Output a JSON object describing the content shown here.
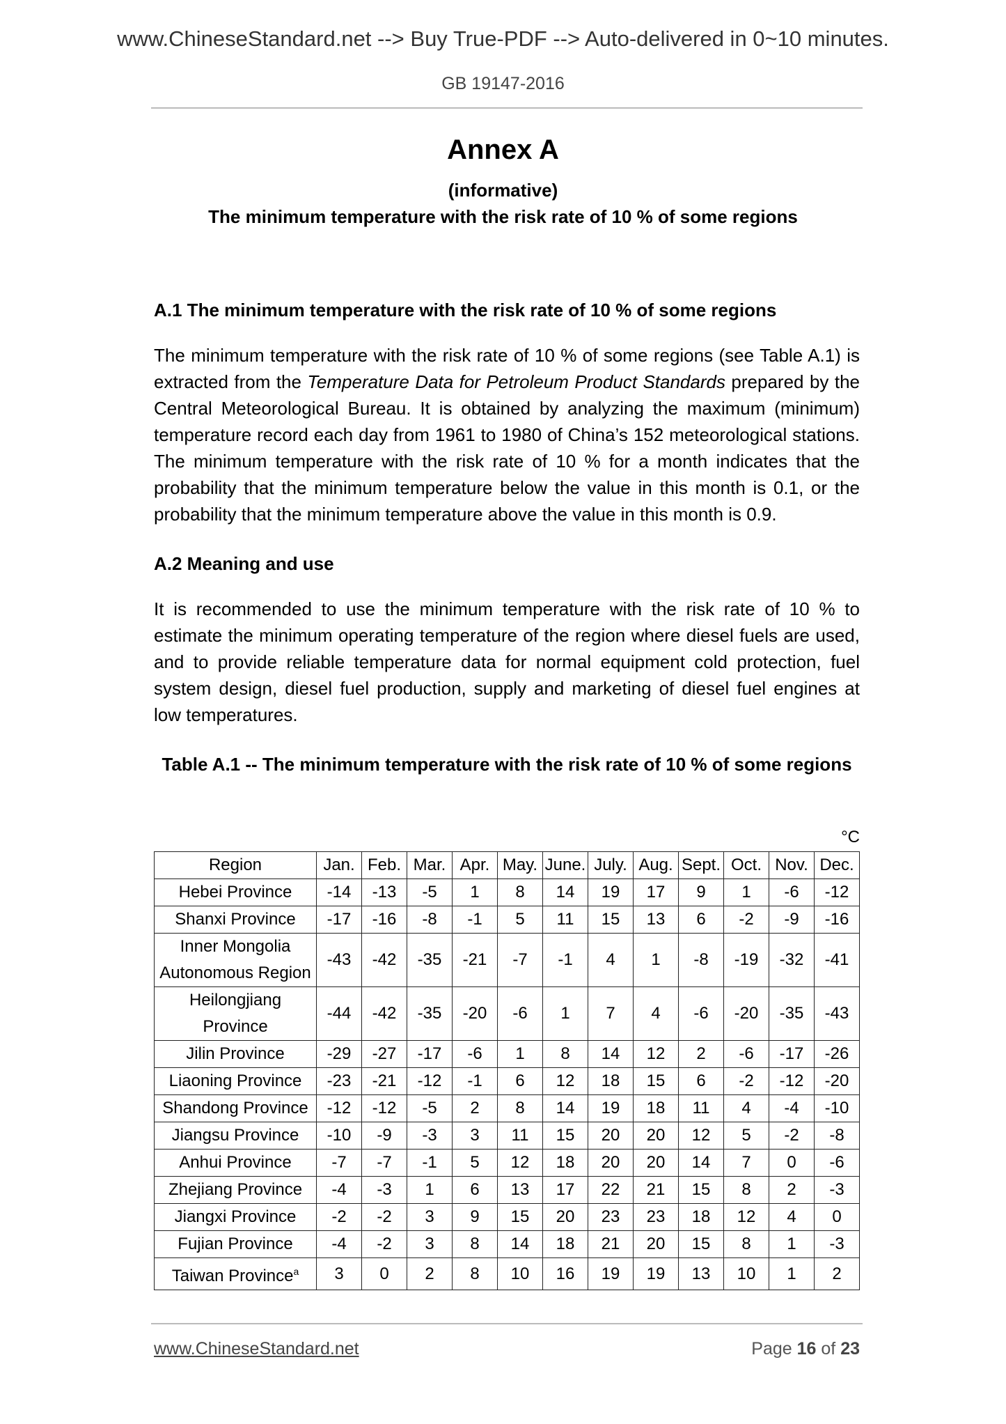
{
  "banner": "www.ChineseStandard.net --> Buy True-PDF --> Auto-delivered in 0~10 minutes.",
  "doc_code": "GB 19147-2016",
  "annex": {
    "title": "Annex A",
    "type": "(informative)",
    "subtitle": "The minimum temperature with the risk rate of 10 % of some regions"
  },
  "sections": [
    {
      "heading": "A.1 The minimum temperature with the risk rate of 10 % of some regions",
      "para_pre": "The minimum temperature with the risk rate of 10 % of some regions (see Table A.1) is extracted from the ",
      "para_italic": "Temperature Data for Petroleum Product Standards",
      "para_post": " prepared by the Central Meteorological Bureau. It is obtained by analyzing the maximum (minimum) temperature record each day from 1961 to 1980 of China’s 152 meteorological stations. The minimum temperature with the risk rate of 10 % for a month indicates that the probability that the minimum temperature below the value in this month is 0.1, or the probability that the minimum temperature above the value in this month is 0.9."
    },
    {
      "heading": "A.2 Meaning and use",
      "para": "It is recommended to use the minimum temperature with the risk rate of 10 % to estimate the minimum operating temperature of the region where diesel fuels are used, and to provide reliable temperature data for normal equipment cold protection, fuel system design, diesel fuel production, supply and marketing of diesel fuel engines at low temperatures."
    }
  ],
  "table": {
    "caption": "Table A.1 -- The minimum temperature with the risk rate of 10 % of some regions",
    "unit": "°C",
    "headers": [
      "Region",
      "Jan.",
      "Feb.",
      "Mar.",
      "Apr.",
      "May.",
      "June.",
      "July.",
      "Aug.",
      "Sept.",
      "Oct.",
      "Nov.",
      "Dec."
    ],
    "rows": [
      {
        "region": "Hebei Province",
        "values": [
          -14,
          -13,
          -5,
          1,
          8,
          14,
          19,
          17,
          9,
          1,
          -6,
          -12
        ]
      },
      {
        "region": "Shanxi Province",
        "values": [
          -17,
          -16,
          -8,
          -1,
          5,
          11,
          15,
          13,
          6,
          -2,
          -9,
          -16
        ]
      },
      {
        "region": "Inner Mongolia Autonomous Region",
        "values": [
          -43,
          -42,
          -35,
          -21,
          -7,
          -1,
          4,
          1,
          -8,
          -19,
          -32,
          -41
        ]
      },
      {
        "region": "Heilongjiang Province",
        "values": [
          -44,
          -42,
          -35,
          -20,
          -6,
          1,
          7,
          4,
          -6,
          -20,
          -35,
          -43
        ]
      },
      {
        "region": "Jilin Province",
        "values": [
          -29,
          -27,
          -17,
          -6,
          1,
          8,
          14,
          12,
          2,
          -6,
          -17,
          -26
        ]
      },
      {
        "region": "Liaoning Province",
        "values": [
          -23,
          -21,
          -12,
          -1,
          6,
          12,
          18,
          15,
          6,
          -2,
          -12,
          -20
        ]
      },
      {
        "region": "Shandong Province",
        "values": [
          -12,
          -12,
          -5,
          2,
          8,
          14,
          19,
          18,
          11,
          4,
          -4,
          -10
        ]
      },
      {
        "region": "Jiangsu Province",
        "values": [
          -10,
          -9,
          -3,
          3,
          11,
          15,
          20,
          20,
          12,
          5,
          -2,
          -8
        ]
      },
      {
        "region": "Anhui Province",
        "values": [
          -7,
          -7,
          -1,
          5,
          12,
          18,
          20,
          20,
          14,
          7,
          0,
          -6
        ]
      },
      {
        "region": "Zhejiang Province",
        "values": [
          -4,
          -3,
          1,
          6,
          13,
          17,
          22,
          21,
          15,
          8,
          2,
          -3
        ]
      },
      {
        "region": "Jiangxi Province",
        "values": [
          -2,
          -2,
          3,
          9,
          15,
          20,
          23,
          23,
          18,
          12,
          4,
          0
        ]
      },
      {
        "region": "Fujian Province",
        "values": [
          -4,
          -2,
          3,
          8,
          14,
          18,
          21,
          20,
          15,
          8,
          1,
          -3
        ]
      },
      {
        "region": "Taiwan Province",
        "footnote": "a",
        "values": [
          3,
          0,
          2,
          8,
          10,
          16,
          19,
          19,
          13,
          10,
          1,
          2
        ]
      }
    ]
  },
  "footer": {
    "link": "www.ChineseStandard.net",
    "page_label": "Page",
    "page": "16",
    "of_label": "of",
    "total": "23"
  }
}
